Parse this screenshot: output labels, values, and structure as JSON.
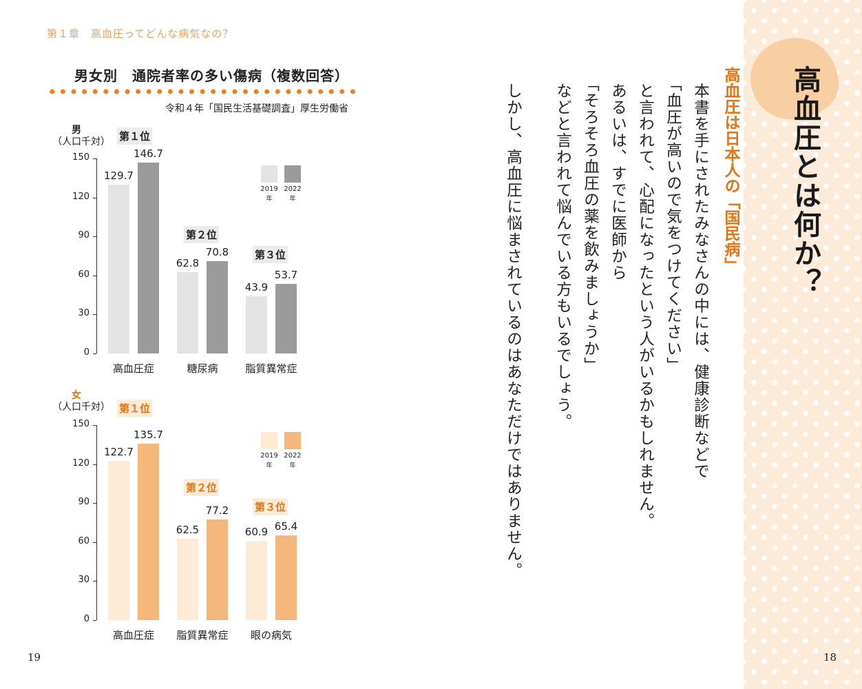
{
  "header": {
    "chapter": "第１章　高血圧ってどんな病気なの？",
    "figure_title": "男女別　通院者率の多い傷病（複数回答）",
    "source": "令和４年「国民生活基礎調査」厚生労働省"
  },
  "chart_data": [
    {
      "type": "bar",
      "group_label": "男",
      "ylabel": "（人口千対）",
      "ylim": [
        0,
        150
      ],
      "yticks": [
        0,
        30,
        60,
        90,
        120,
        150
      ],
      "categories": [
        "高血圧症",
        "糖尿病",
        "脂質異常症"
      ],
      "ranks": [
        "第１位",
        "第２位",
        "第３位"
      ],
      "series": [
        {
          "name": "2019年",
          "legend": [
            "2019",
            "年"
          ],
          "color": "#e3e3e3",
          "values": [
            129.7,
            62.8,
            43.9
          ]
        },
        {
          "name": "2022年",
          "legend": [
            "2022",
            "年"
          ],
          "color": "#9b9b9b",
          "values": [
            146.7,
            70.8,
            53.7
          ]
        }
      ],
      "rank_color": "#222222",
      "rank_bg": "#ebebeb",
      "legend_position": "top-right"
    },
    {
      "type": "bar",
      "group_label": "女",
      "ylabel": "（人口千対）",
      "ylim": [
        0,
        150
      ],
      "yticks": [
        0,
        30,
        60,
        90,
        120,
        150
      ],
      "categories": [
        "高血圧症",
        "脂質異常症",
        "眼の病気"
      ],
      "ranks": [
        "第１位",
        "第２位",
        "第３位"
      ],
      "series": [
        {
          "name": "2019年",
          "legend": [
            "2019",
            "年"
          ],
          "color": "#fdebd5",
          "values": [
            122.7,
            62.5,
            60.9
          ]
        },
        {
          "name": "2022年",
          "legend": [
            "2022",
            "年"
          ],
          "color": "#f4b87c",
          "values": [
            135.7,
            77.2,
            65.4
          ]
        }
      ],
      "rank_color": "#e8720c",
      "rank_bg": "#fdebd5",
      "legend_position": "top-right"
    }
  ],
  "body": {
    "subheading": "高血圧は日本人の「国民病」",
    "lines": [
      "本書を手にされたみなさんの中には、健康診断などで",
      "「血圧が高いので気をつけてください」",
      "と言われて、心配になったという人がいるかもしれません。",
      "あるいは、すでに医師から",
      "「そろそろ血圧の薬を飲みましょうか」",
      "などと言われて悩んでいる方もいるでしょう。",
      "しかし、高血圧に悩まされているのはあなただけではありません。"
    ]
  },
  "side": {
    "title": "高血圧とは何か？"
  },
  "page_numbers": {
    "left": "19",
    "right": "18"
  },
  "colors": {
    "accent": "#e8720c",
    "strip_bg": "#fcebd8",
    "blob": "#f7cfa2"
  }
}
